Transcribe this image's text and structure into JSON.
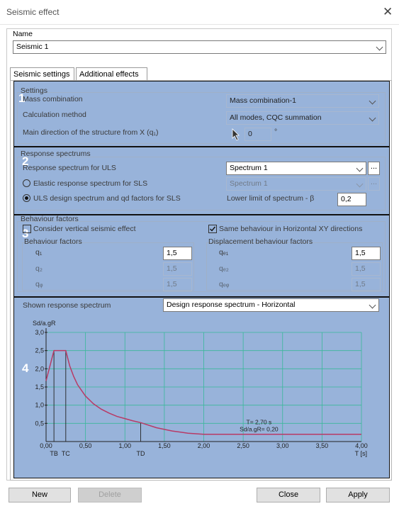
{
  "window": {
    "title": "Seismic effect"
  },
  "name_field": {
    "label": "Name",
    "value": "Seismic 1"
  },
  "tabs": [
    {
      "label": "Seismic settings"
    },
    {
      "label": "Additional effects"
    }
  ],
  "section1": {
    "number": "1",
    "group": "Settings",
    "mass_label": "Mass combination",
    "mass_value": "Mass combination-1",
    "calc_label": "Calculation method",
    "calc_value": "All modes, CQC summation",
    "dir_label": "Main direction of the structure from X (q₁)",
    "dir_value": "0",
    "dir_unit": "°"
  },
  "section2": {
    "number": "2",
    "group": "Response spectrums",
    "uls_label": "Response spectrum for ULS",
    "uls_value": "Spectrum 1",
    "elastic_label": "Elastic response spectrum for SLS",
    "elastic_value": "Spectrum 1",
    "design_label": "ULS design spectrum and qd factors for SLS",
    "beta_label": "Lower limit of spectrum - β",
    "beta_value": "0,2",
    "dots": "..."
  },
  "section3": {
    "number": "3",
    "group": "Behaviour factors",
    "vertical_label": "Consider vertical seismic effect",
    "same_label": "Same behaviour in Horizontal XY directions",
    "bf_title": "Behaviour factors",
    "df_title": "Displacement behaviour factors",
    "q1": "q₁",
    "q2": "q₂",
    "qz": "qᵩ",
    "q1_value": "1,5",
    "q2_value": "1,5",
    "qz_value": "1,5",
    "qd1": "qₑ₁",
    "qd2": "qₑ₂",
    "qdz": "qₑᵩ",
    "qd1_value": "1,5",
    "qd2_value": "1,5",
    "qdz_value": "1,5"
  },
  "section4": {
    "number": "4",
    "shown_label": "Shown response spectrum",
    "shown_value": "Design response spectrum - Horizontal"
  },
  "chart_data": {
    "type": "line",
    "ylabel": "Sd/a.gR",
    "xlabel": "T [s]",
    "xlim": [
      0,
      4.0
    ],
    "ylim": [
      0,
      3.0
    ],
    "x_ticks": [
      "0,00",
      "0,50",
      "1,00",
      "1,50",
      "2,00",
      "2,50",
      "3,00",
      "3,50",
      "4,00"
    ],
    "y_ticks": [
      "0,5",
      "1,0",
      "1,5",
      "2,0",
      "2,5",
      "3,0"
    ],
    "markers": [
      {
        "label": "TB",
        "x": 0.1
      },
      {
        "label": "TC",
        "x": 0.25
      },
      {
        "label": "TD",
        "x": 1.2
      }
    ],
    "annotation_lines": [
      "T= 2,70 s",
      "Sd/a.gR= 0,20"
    ],
    "grid": true,
    "series": [
      {
        "color": "#b83a66",
        "x": [
          0,
          0.1,
          0.25,
          0.3,
          0.35,
          0.4,
          0.5,
          0.6,
          0.7,
          0.8,
          0.9,
          1.0,
          1.1,
          1.2,
          1.4,
          1.6,
          1.8,
          2.0,
          2.5,
          3.0,
          3.5,
          4.0
        ],
        "y": [
          1.67,
          2.5,
          2.5,
          2.08,
          1.79,
          1.56,
          1.25,
          1.04,
          0.89,
          0.78,
          0.69,
          0.63,
          0.57,
          0.52,
          0.38,
          0.29,
          0.23,
          0.2,
          0.2,
          0.2,
          0.2,
          0.2
        ]
      }
    ]
  },
  "buttons": {
    "new": "New",
    "delete": "Delete",
    "close": "Close",
    "apply": "Apply"
  },
  "colors": {
    "overlay": "#7096cc",
    "curve": "#b83a66",
    "grid": "#3ab89a"
  }
}
